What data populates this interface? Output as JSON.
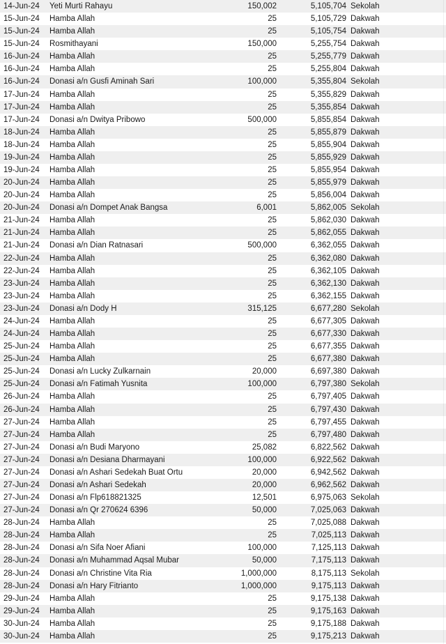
{
  "colors": {
    "row_stripe": "#efefef",
    "background": "#ffffff",
    "text": "#1b1b1b"
  },
  "ledger": {
    "columns": [
      "date",
      "donor",
      "amount",
      "balance",
      "category"
    ],
    "rows": [
      {
        "date": "14-Jun-24",
        "donor": "Yeti Murti Rahayu",
        "amount": "150,002",
        "balance": "5,105,704",
        "category": "Sekolah"
      },
      {
        "date": "15-Jun-24",
        "donor": "Hamba Allah",
        "amount": "25",
        "balance": "5,105,729",
        "category": "Dakwah"
      },
      {
        "date": "15-Jun-24",
        "donor": "Hamba Allah",
        "amount": "25",
        "balance": "5,105,754",
        "category": "Dakwah"
      },
      {
        "date": "15-Jun-24",
        "donor": "Rosmithayani",
        "amount": "150,000",
        "balance": "5,255,754",
        "category": "Dakwah"
      },
      {
        "date": "16-Jun-24",
        "donor": "Hamba Allah",
        "amount": "25",
        "balance": "5,255,779",
        "category": "Dakwah"
      },
      {
        "date": "16-Jun-24",
        "donor": "Hamba Allah",
        "amount": "25",
        "balance": "5,255,804",
        "category": "Dakwah"
      },
      {
        "date": "16-Jun-24",
        "donor": "Donasi a/n Gusfi Aminah Sari",
        "amount": "100,000",
        "balance": "5,355,804",
        "category": "Sekolah"
      },
      {
        "date": "17-Jun-24",
        "donor": "Hamba Allah",
        "amount": "25",
        "balance": "5,355,829",
        "category": "Dakwah"
      },
      {
        "date": "17-Jun-24",
        "donor": "Hamba Allah",
        "amount": "25",
        "balance": "5,355,854",
        "category": "Dakwah"
      },
      {
        "date": "17-Jun-24",
        "donor": "Donasi a/n Dwitya Pribowo",
        "amount": "500,000",
        "balance": "5,855,854",
        "category": "Dakwah"
      },
      {
        "date": "18-Jun-24",
        "donor": "Hamba Allah",
        "amount": "25",
        "balance": "5,855,879",
        "category": "Dakwah"
      },
      {
        "date": "18-Jun-24",
        "donor": "Hamba Allah",
        "amount": "25",
        "balance": "5,855,904",
        "category": "Dakwah"
      },
      {
        "date": "19-Jun-24",
        "donor": "Hamba Allah",
        "amount": "25",
        "balance": "5,855,929",
        "category": "Dakwah"
      },
      {
        "date": "19-Jun-24",
        "donor": "Hamba Allah",
        "amount": "25",
        "balance": "5,855,954",
        "category": "Dakwah"
      },
      {
        "date": "20-Jun-24",
        "donor": "Hamba Allah",
        "amount": "25",
        "balance": "5,855,979",
        "category": "Dakwah"
      },
      {
        "date": "20-Jun-24",
        "donor": "Hamba Allah",
        "amount": "25",
        "balance": "5,856,004",
        "category": "Dakwah"
      },
      {
        "date": "20-Jun-24",
        "donor": "Donasi a/n Dompet Anak Bangsa",
        "amount": "6,001",
        "balance": "5,862,005",
        "category": "Sekolah"
      },
      {
        "date": "21-Jun-24",
        "donor": "Hamba Allah",
        "amount": "25",
        "balance": "5,862,030",
        "category": "Dakwah"
      },
      {
        "date": "21-Jun-24",
        "donor": "Hamba Allah",
        "amount": "25",
        "balance": "5,862,055",
        "category": "Dakwah"
      },
      {
        "date": "21-Jun-24",
        "donor": "Donasi a/n Dian Ratnasari",
        "amount": "500,000",
        "balance": "6,362,055",
        "category": "Dakwah"
      },
      {
        "date": "22-Jun-24",
        "donor": "Hamba Allah",
        "amount": "25",
        "balance": "6,362,080",
        "category": "Dakwah"
      },
      {
        "date": "22-Jun-24",
        "donor": "Hamba Allah",
        "amount": "25",
        "balance": "6,362,105",
        "category": "Dakwah"
      },
      {
        "date": "23-Jun-24",
        "donor": "Hamba Allah",
        "amount": "25",
        "balance": "6,362,130",
        "category": "Dakwah"
      },
      {
        "date": "23-Jun-24",
        "donor": "Hamba Allah",
        "amount": "25",
        "balance": "6,362,155",
        "category": "Dakwah"
      },
      {
        "date": "23-Jun-24",
        "donor": "Donasi a/n Dody H",
        "amount": "315,125",
        "balance": "6,677,280",
        "category": "Sekolah"
      },
      {
        "date": "24-Jun-24",
        "donor": "Hamba Allah",
        "amount": "25",
        "balance": "6,677,305",
        "category": "Dakwah"
      },
      {
        "date": "24-Jun-24",
        "donor": "Hamba Allah",
        "amount": "25",
        "balance": "6,677,330",
        "category": "Dakwah"
      },
      {
        "date": "25-Jun-24",
        "donor": "Hamba Allah",
        "amount": "25",
        "balance": "6,677,355",
        "category": "Dakwah"
      },
      {
        "date": "25-Jun-24",
        "donor": "Hamba Allah",
        "amount": "25",
        "balance": "6,677,380",
        "category": "Dakwah"
      },
      {
        "date": "25-Jun-24",
        "donor": "Donasi a/n Lucky Zulkarnain",
        "amount": "20,000",
        "balance": "6,697,380",
        "category": "Dakwah"
      },
      {
        "date": "25-Jun-24",
        "donor": "Donasi a/n Fatimah Yusnita",
        "amount": "100,000",
        "balance": "6,797,380",
        "category": "Sekolah"
      },
      {
        "date": "26-Jun-24",
        "donor": "Hamba Allah",
        "amount": "25",
        "balance": "6,797,405",
        "category": "Dakwah"
      },
      {
        "date": "26-Jun-24",
        "donor": "Hamba Allah",
        "amount": "25",
        "balance": "6,797,430",
        "category": "Dakwah"
      },
      {
        "date": "27-Jun-24",
        "donor": "Hamba Allah",
        "amount": "25",
        "balance": "6,797,455",
        "category": "Dakwah"
      },
      {
        "date": "27-Jun-24",
        "donor": "Hamba Allah",
        "amount": "25",
        "balance": "6,797,480",
        "category": "Dakwah"
      },
      {
        "date": "27-Jun-24",
        "donor": "Donasi a/n Budi Maryono",
        "amount": "25,082",
        "balance": "6,822,562",
        "category": "Dakwah"
      },
      {
        "date": "27-Jun-24",
        "donor": "Donasi a/n Desiana Dharmayani",
        "amount": "100,000",
        "balance": "6,922,562",
        "category": "Dakwah"
      },
      {
        "date": "27-Jun-24",
        "donor": "Donasi a/n Ashari Sedekah Buat Ortu",
        "amount": "20,000",
        "balance": "6,942,562",
        "category": "Dakwah"
      },
      {
        "date": "27-Jun-24",
        "donor": "Donasi a/n Ashari Sedekah",
        "amount": "20,000",
        "balance": "6,962,562",
        "category": "Dakwah"
      },
      {
        "date": "27-Jun-24",
        "donor": "Donasi a/n Flp618821325",
        "amount": "12,501",
        "balance": "6,975,063",
        "category": "Sekolah"
      },
      {
        "date": "27-Jun-24",
        "donor": "Donasi a/n Qr 270624 6396",
        "amount": "50,000",
        "balance": "7,025,063",
        "category": "Dakwah"
      },
      {
        "date": "28-Jun-24",
        "donor": "Hamba Allah",
        "amount": "25",
        "balance": "7,025,088",
        "category": "Dakwah"
      },
      {
        "date": "28-Jun-24",
        "donor": "Hamba Allah",
        "amount": "25",
        "balance": "7,025,113",
        "category": "Dakwah"
      },
      {
        "date": "28-Jun-24",
        "donor": "Donasi a/n Sifa Noer Afiani",
        "amount": "100,000",
        "balance": "7,125,113",
        "category": "Dakwah"
      },
      {
        "date": "28-Jun-24",
        "donor": "Donasi a/n Muhammad Aqsal Mubar",
        "amount": "50,000",
        "balance": "7,175,113",
        "category": "Dakwah"
      },
      {
        "date": "28-Jun-24",
        "donor": "Donasi a/n Christine Vita Ria",
        "amount": "1,000,000",
        "balance": "8,175,113",
        "category": "Sekolah"
      },
      {
        "date": "28-Jun-24",
        "donor": "Donasi a/n Hary Fitrianto",
        "amount": "1,000,000",
        "balance": "9,175,113",
        "category": "Dakwah"
      },
      {
        "date": "29-Jun-24",
        "donor": "Hamba Allah",
        "amount": "25",
        "balance": "9,175,138",
        "category": "Dakwah"
      },
      {
        "date": "29-Jun-24",
        "donor": "Hamba Allah",
        "amount": "25",
        "balance": "9,175,163",
        "category": "Dakwah"
      },
      {
        "date": "30-Jun-24",
        "donor": "Hamba Allah",
        "amount": "25",
        "balance": "9,175,188",
        "category": "Dakwah"
      },
      {
        "date": "30-Jun-24",
        "donor": "Hamba Allah",
        "amount": "25",
        "balance": "9,175,213",
        "category": "Dakwah"
      }
    ]
  }
}
